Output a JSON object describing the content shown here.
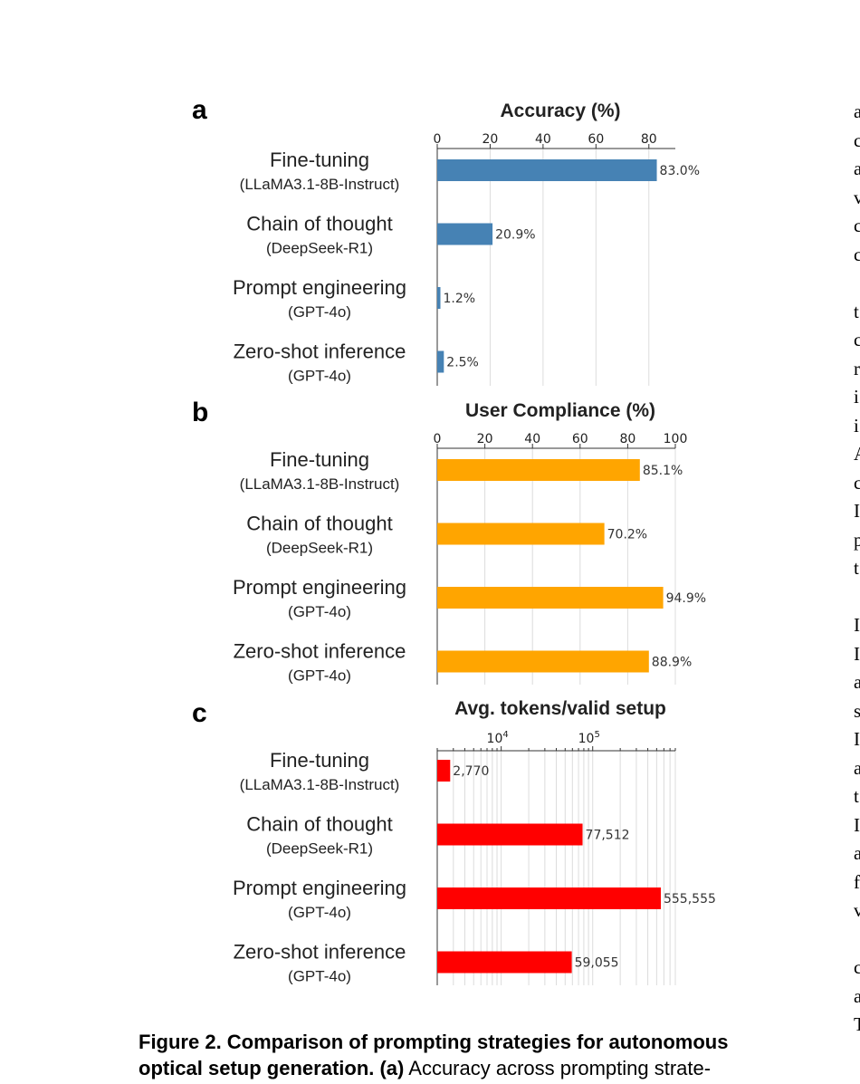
{
  "chart_data": [
    {
      "panel": "a",
      "type": "bar",
      "orientation": "horizontal",
      "title": "Accuracy (%)",
      "categories": [
        "Fine-tuning",
        "Chain of thought",
        "Prompt engineering",
        "Zero-shot inference"
      ],
      "subcategories": [
        "(LLaMA3.1-8B-Instruct)",
        "(DeepSeek-R1)",
        "(GPT-4o)",
        "(GPT-4o)"
      ],
      "values": [
        83.0,
        20.9,
        1.2,
        2.5
      ],
      "value_labels": [
        "83.0%",
        "20.9%",
        "1.2%",
        "2.5%"
      ],
      "xlim": [
        0,
        90
      ],
      "ticks": [
        0,
        20,
        40,
        60,
        80
      ],
      "tick_labels": [
        "0",
        "20",
        "40",
        "60",
        "80"
      ],
      "scale": "linear",
      "color": "#4682b4",
      "grid": true
    },
    {
      "panel": "b",
      "type": "bar",
      "orientation": "horizontal",
      "title": "User Compliance (%)",
      "categories": [
        "Fine-tuning",
        "Chain of thought",
        "Prompt engineering",
        "Zero-shot inference"
      ],
      "subcategories": [
        "(LLaMA3.1-8B-Instruct)",
        "(DeepSeek-R1)",
        "(GPT-4o)",
        "(GPT-4o)"
      ],
      "values": [
        85.1,
        70.2,
        94.9,
        88.9
      ],
      "value_labels": [
        "85.1%",
        "70.2%",
        "94.9%",
        "88.9%"
      ],
      "xlim": [
        0,
        100
      ],
      "ticks": [
        0,
        20,
        40,
        60,
        80,
        100
      ],
      "tick_labels": [
        "0",
        "20",
        "40",
        "60",
        "80",
        "100"
      ],
      "scale": "linear",
      "color": "#ffa500",
      "grid": true
    },
    {
      "panel": "c",
      "type": "bar",
      "orientation": "horizontal",
      "title": "Avg. tokens/valid setup",
      "categories": [
        "Fine-tuning",
        "Chain of thought",
        "Prompt engineering",
        "Zero-shot inference"
      ],
      "subcategories": [
        "(LLaMA3.1-8B-Instruct)",
        "(DeepSeek-R1)",
        "(GPT-4o)",
        "(GPT-4o)"
      ],
      "values": [
        2770,
        77512,
        555555,
        59055
      ],
      "value_labels": [
        "2,770",
        "77,512",
        "555,555",
        "59,055"
      ],
      "xlim": [
        2000,
        800000
      ],
      "ticks": [
        10000,
        100000
      ],
      "tick_labels": [
        [
          "10",
          "4"
        ],
        [
          "10",
          "5"
        ]
      ],
      "scale": "log",
      "color": "#ff0000",
      "grid": true
    }
  ],
  "caption": {
    "bold_line1": "Figure 2. Comparison of prompting strategies for autonomous",
    "bold_line2": "optical setup generation. (a)",
    "rest_line2": " Accuracy across prompting strate-"
  },
  "margin_text": [
    "a",
    "c",
    "a",
    "v",
    "c",
    "c",
    "",
    "t",
    "c",
    "r",
    "i",
    "i",
    "A",
    "c",
    "I",
    "p",
    "t",
    "",
    "I",
    "I",
    "a",
    "s",
    "I",
    "a",
    "t",
    "I",
    "a",
    "f",
    "v",
    "",
    "c",
    "a",
    "T"
  ]
}
